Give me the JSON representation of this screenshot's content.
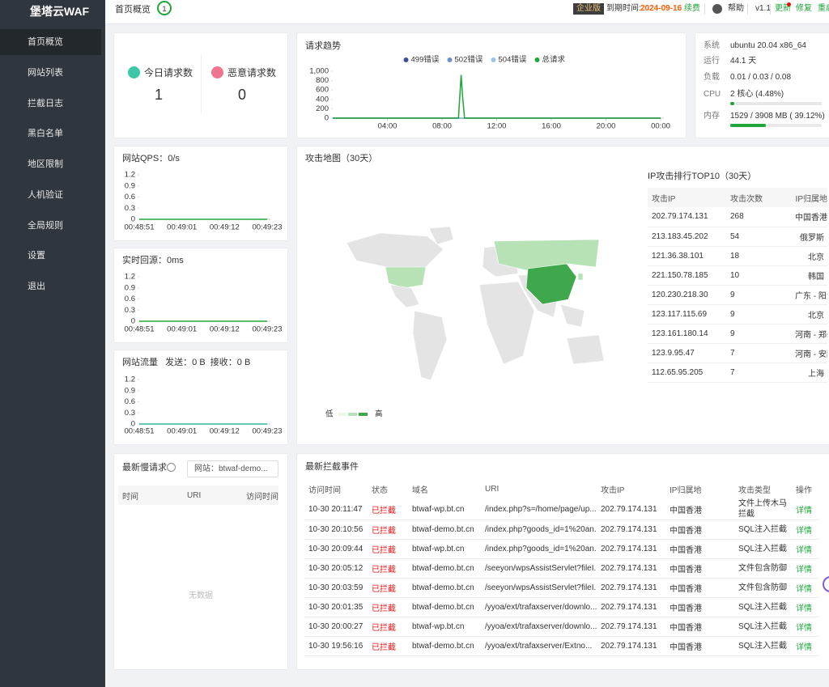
{
  "sidebar": {
    "brand": "堡塔云WAF",
    "menu": [
      "首页概览",
      "网站列表",
      "拦截日志",
      "黑白名单",
      "地区限制",
      "人机验证",
      "全局规则",
      "设置",
      "退出"
    ]
  },
  "header": {
    "page": "首页概览",
    "badge": "1",
    "edition": "企业版",
    "expire_label": "到期时间:",
    "expire_date": "2024-09-16",
    "renew": "续费",
    "help": "帮助",
    "version": "v1.1",
    "update": "更新",
    "repair": "修复",
    "restart": "重启"
  },
  "stats": {
    "today_label": "今日请求数",
    "today_value": 1,
    "malicious_label": "恶意请求数",
    "malicious_value": 0
  },
  "chart_data": [
    {
      "type": "line",
      "title": "请求趋势",
      "legend": "top",
      "grid": false,
      "xlim": [
        0,
        24
      ],
      "xticks": [
        {
          "value": 4,
          "label": "04:00"
        },
        {
          "value": 8,
          "label": "08:00"
        },
        {
          "value": 12,
          "label": "12:00"
        },
        {
          "value": 16,
          "label": "16:00"
        },
        {
          "value": 20,
          "label": "20:00"
        },
        {
          "value": 24,
          "label": "00:00"
        }
      ],
      "ylim": [
        0,
        1000
      ],
      "yticks": [
        0,
        200,
        400,
        600,
        800,
        {
          "value": 1000,
          "label": "1,000"
        }
      ],
      "series": [
        {
          "name": "499错误",
          "color": "#3e4c9e",
          "x": [
            0,
            24
          ],
          "values": [
            0,
            0
          ]
        },
        {
          "name": "502错误",
          "color": "#6f8fc8",
          "x": [
            0,
            24
          ],
          "values": [
            0,
            0
          ]
        },
        {
          "name": "504错误",
          "color": "#9dc4e4",
          "x": [
            0,
            24
          ],
          "values": [
            0,
            0
          ]
        },
        {
          "name": "总请求",
          "color": "#20a53a",
          "x": [
            0,
            9.2,
            9.3,
            9.4,
            9.5,
            9.65,
            24
          ],
          "values": [
            0,
            0,
            450,
            920,
            480,
            0,
            0
          ]
        }
      ]
    },
    {
      "type": "line",
      "title": "网站QPS：0/s",
      "grid": false,
      "color": "#20a53a",
      "categories": [
        "00:48:51",
        "00:49:01",
        "00:49:12",
        "00:49:23"
      ],
      "values": [
        0,
        0,
        0,
        0
      ],
      "ylim": [
        0,
        1.2
      ],
      "yticks": [
        0,
        0.3,
        0.6,
        0.9,
        1.2
      ]
    },
    {
      "type": "line",
      "title": "实时回源：0ms",
      "grid": false,
      "color": "#20a53a",
      "categories": [
        "00:48:51",
        "00:49:01",
        "00:49:12",
        "00:49:23"
      ],
      "values": [
        0,
        0,
        0,
        0
      ],
      "ylim": [
        0,
        1.2
      ],
      "yticks": [
        0,
        0.3,
        0.6,
        0.9,
        1.2
      ]
    },
    {
      "type": "line",
      "title": "网站流量   发送：0 B  接收：0 B",
      "grid": false,
      "color": "#3ab0a0",
      "categories": [
        "00:48:51",
        "00:49:01",
        "00:49:12",
        "00:49:23"
      ],
      "values": [
        0,
        0,
        0,
        0
      ],
      "ylim": [
        0,
        1.2
      ],
      "yticks": [
        0,
        0.3,
        0.6,
        0.9,
        1.2
      ]
    }
  ],
  "system": {
    "rows": [
      {
        "label": "系统",
        "value": "ubuntu 20.04 x86_64"
      },
      {
        "label": "运行",
        "value": "44.1 天"
      },
      {
        "label": "负载",
        "value": "0.01 / 0.03 / 0.08"
      },
      {
        "label": "CPU",
        "value": "2 核心 (4.48%)",
        "percent": 4.48
      },
      {
        "label": "内存",
        "value": "1529 / 3908 MB ( 39.12%)",
        "percent": 39.12
      }
    ]
  },
  "map": {
    "title": "攻击地图（30天）",
    "legend_low": "低",
    "legend_high": "高"
  },
  "top10": {
    "title": "IP攻击排行TOP10（30天）",
    "columns": [
      "攻击IP",
      "攻击次数",
      "IP归属地"
    ],
    "rows": [
      [
        "202.79.174.131",
        268,
        "中国香港"
      ],
      [
        "213.183.45.202",
        54,
        "俄罗斯"
      ],
      [
        "121.36.38.101",
        18,
        "北京"
      ],
      [
        "221.150.78.185",
        10,
        "韩国"
      ],
      [
        "120.230.218.30",
        9,
        "广东 - 阳江"
      ],
      [
        "123.117.115.69",
        9,
        "北京"
      ],
      [
        "123.161.180.14",
        9,
        "河南 - 郑州"
      ],
      [
        "123.9.95.47",
        7,
        "河南 - 安阳"
      ],
      [
        "112.65.95.205",
        7,
        "上海"
      ]
    ]
  },
  "slow": {
    "title": "最新慢请求",
    "site_select": "网站：btwaf-demo...",
    "columns": [
      "时间",
      "URI",
      "访问时间"
    ],
    "empty": "无数据"
  },
  "events": {
    "title": "最新拦截事件",
    "columns": [
      "访问时间",
      "状态",
      "域名",
      "URI",
      "攻击IP",
      "IP归属地",
      "攻击类型",
      "操作"
    ],
    "rows": [
      [
        "10-30 20:11:47",
        "已拦截",
        "btwaf-wp.bt.cn",
        "/index.php?s=/home/page/up...",
        "202.79.174.131",
        "中国香港",
        "文件上传木马拦截",
        "详情"
      ],
      [
        "10-30 20:10:56",
        "已拦截",
        "btwaf-demo.bt.cn",
        "/index.php?goods_id=1%20an...",
        "202.79.174.131",
        "中国香港",
        "SQL注入拦截",
        "详情"
      ],
      [
        "10-30 20:09:44",
        "已拦截",
        "btwaf-wp.bt.cn",
        "/index.php?goods_id=1%20an...",
        "202.79.174.131",
        "中国香港",
        "SQL注入拦截",
        "详情"
      ],
      [
        "10-30 20:05:12",
        "已拦截",
        "btwaf-demo.bt.cn",
        "/seeyon/wpsAssistServlet?fileI...",
        "202.79.174.131",
        "中国香港",
        "文件包含防御",
        "详情"
      ],
      [
        "10-30 20:03:59",
        "已拦截",
        "btwaf-demo.bt.cn",
        "/seeyon/wpsAssistServlet?fileI...",
        "202.79.174.131",
        "中国香港",
        "文件包含防御",
        "详情"
      ],
      [
        "10-30 20:01:35",
        "已拦截",
        "btwaf-demo.bt.cn",
        "/yyoa/ext/trafaxserver/downlo...",
        "202.79.174.131",
        "中国香港",
        "SQL注入拦截",
        "详情"
      ],
      [
        "10-30 20:00:27",
        "已拦截",
        "btwaf-wp.bt.cn",
        "/yyoa/ext/trafaxserver/downlo...",
        "202.79.174.131",
        "中国香港",
        "SQL注入拦截",
        "详情"
      ],
      [
        "10-30 19:56:16",
        "已拦截",
        "btwaf-demo.bt.cn",
        "/yyoa/ext/trafaxserver/Extno...",
        "202.79.174.131",
        "中国香港",
        "SQL注入拦截",
        "详情"
      ]
    ]
  }
}
